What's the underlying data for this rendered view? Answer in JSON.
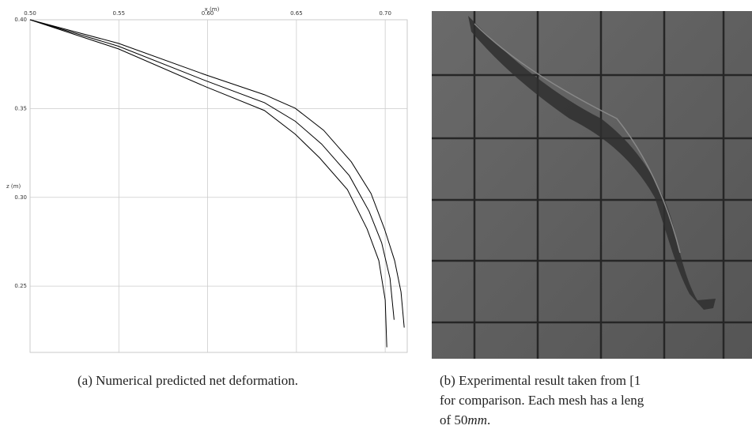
{
  "chart_data": {
    "type": "line",
    "x_label": "x (m)",
    "y_label": "z (m)",
    "xlim": [
      0.5,
      0.7124
    ],
    "ylim": [
      0.2127,
      0.4
    ],
    "xticks": [
      {
        "value": 0.5,
        "label": "0.50"
      },
      0.55,
      {
        "value": 0.6,
        "label": "0.60"
      },
      0.65,
      {
        "value": 0.7,
        "label": "0.70"
      }
    ],
    "yticks": [
      {
        "value": 0.4,
        "label": "0.40"
      },
      0.35,
      {
        "value": 0.3,
        "label": "0.30"
      },
      0.25
    ],
    "grid": true,
    "series": [
      {
        "color": "#000000",
        "x": [
          0.5,
          0.5498,
          0.5991,
          0.632,
          0.6493,
          0.6631,
          0.6787,
          0.6898,
          0.6964,
          0.7,
          0.7009
        ],
        "values": [
          0.4,
          0.3836,
          0.3622,
          0.3489,
          0.3356,
          0.3222,
          0.3044,
          0.2822,
          0.2644,
          0.2422,
          0.2156
        ]
      },
      {
        "color": "#000000",
        "x": [
          0.5,
          0.5498,
          0.5991,
          0.632,
          0.6493,
          0.6642,
          0.6798,
          0.6909,
          0.698,
          0.7027,
          0.705
        ],
        "values": [
          0.4,
          0.3851,
          0.3656,
          0.3533,
          0.3429,
          0.33,
          0.3122,
          0.2922,
          0.2744,
          0.2544,
          0.2311
        ]
      },
      {
        "color": "#000000",
        "x": [
          0.5,
          0.5498,
          0.5991,
          0.632,
          0.6493,
          0.6653,
          0.6809,
          0.692,
          0.6996,
          0.7053,
          0.7089,
          0.7107
        ],
        "values": [
          0.4,
          0.3867,
          0.3689,
          0.3578,
          0.3502,
          0.3378,
          0.32,
          0.3022,
          0.2822,
          0.2644,
          0.2467,
          0.2267
        ]
      }
    ]
  },
  "captions": [
    "(a) Numerical predicted net deformation.",
    "(b) Experimental result taken from [1",
    "for comparison. Each mesh has a leng",
    "of 50",
    "mm",
    "."
  ]
}
